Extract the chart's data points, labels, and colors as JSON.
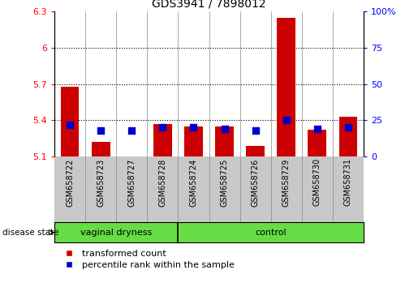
{
  "title": "GDS3941 / 7898012",
  "samples": [
    "GSM658722",
    "GSM658723",
    "GSM658727",
    "GSM658728",
    "GSM658724",
    "GSM658725",
    "GSM658726",
    "GSM658729",
    "GSM658730",
    "GSM658731"
  ],
  "transformed_count": [
    5.68,
    5.22,
    5.1,
    5.37,
    5.35,
    5.35,
    5.19,
    6.25,
    5.32,
    5.43
  ],
  "percentile_rank": [
    22,
    18,
    18,
    20,
    20,
    19,
    18,
    25,
    19,
    20
  ],
  "groups": [
    "vaginal dryness",
    "vaginal dryness",
    "vaginal dryness",
    "vaginal dryness",
    "control",
    "control",
    "control",
    "control",
    "control",
    "control"
  ],
  "ylim_left": [
    5.1,
    6.3
  ],
  "ylim_right": [
    0,
    100
  ],
  "yticks_left": [
    5.1,
    5.4,
    5.7,
    6.0,
    6.3
  ],
  "yticks_right": [
    0,
    25,
    50,
    75,
    100
  ],
  "ytick_labels_left": [
    "5.1",
    "5.4",
    "5.7",
    "6",
    "6.3"
  ],
  "ytick_labels_right": [
    "0",
    "25",
    "50",
    "75",
    "100%"
  ],
  "hlines": [
    5.4,
    5.7,
    6.0
  ],
  "bar_color": "#cc0000",
  "dot_color": "#0000cc",
  "bar_width": 0.6,
  "dot_size": 30,
  "baseline": 5.1,
  "group_label": "disease state",
  "legend_labels": [
    "transformed count",
    "percentile rank within the sample"
  ],
  "legend_colors": [
    "#cc0000",
    "#0000cc"
  ],
  "label_area_color": "#c8c8c8",
  "group_area_color": "#66DD44",
  "group_divider_idx": 4
}
